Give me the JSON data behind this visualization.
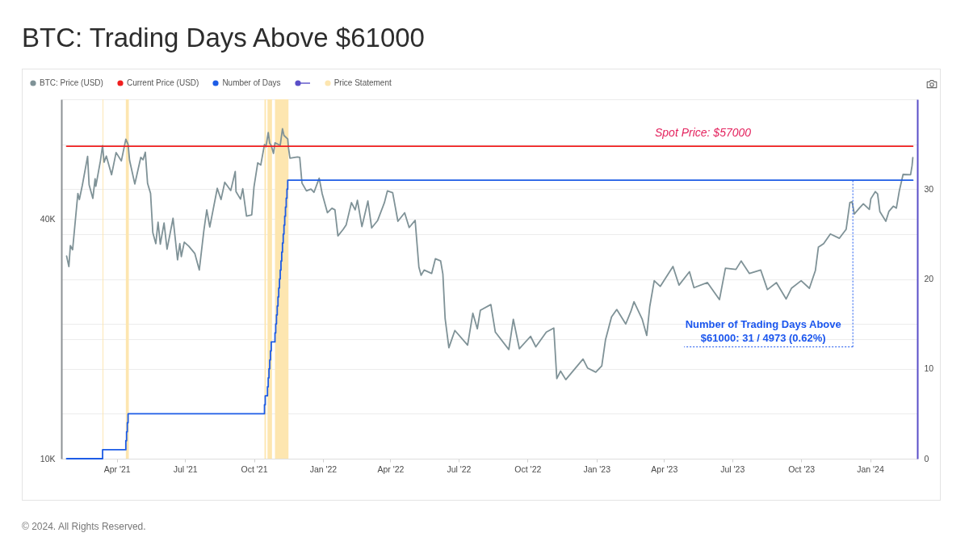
{
  "chart_data": {
    "type": "line",
    "title": "BTC: Trading Days Above $61000",
    "xlim": [
      "2021-01-17",
      "2024-03-04"
    ],
    "xticks": [
      {
        "value": "2021-04-01",
        "label": "Apr '21"
      },
      {
        "value": "2021-07-01",
        "label": "Jul '21"
      },
      {
        "value": "2021-10-01",
        "label": "Oct '21"
      },
      {
        "value": "2022-01-01",
        "label": "Jan '22"
      },
      {
        "value": "2022-04-01",
        "label": "Apr '22"
      },
      {
        "value": "2022-07-01",
        "label": "Jul '22"
      },
      {
        "value": "2022-10-01",
        "label": "Oct '22"
      },
      {
        "value": "2023-01-01",
        "label": "Jan '23"
      },
      {
        "value": "2023-04-01",
        "label": "Apr '23"
      },
      {
        "value": "2023-07-01",
        "label": "Jul '23"
      },
      {
        "value": "2023-10-01",
        "label": "Oct '23"
      },
      {
        "value": "2024-01-01",
        "label": "Jan '24"
      }
    ],
    "ylim": [
      10000,
      80000
    ],
    "log": true,
    "yticks": [
      {
        "value": 10000,
        "label": "10K"
      },
      {
        "value": 20000,
        "label": null
      },
      {
        "value": 40000,
        "label": "40K"
      },
      {
        "value": 80000,
        "label": null
      }
    ],
    "y2lim": [
      0,
      40
    ],
    "y2ticks": [
      0,
      {
        "value": 5,
        "label": null
      },
      10,
      {
        "value": 15,
        "label": null
      },
      20,
      {
        "value": 25,
        "label": null
      },
      30,
      {
        "value": 35,
        "label": null
      }
    ],
    "grid": "y",
    "legend": "top left",
    "bands": [
      {
        "axis": "x",
        "from": "2021-03-13",
        "to": "2021-03-14",
        "color": "#fde6b0",
        "label": "Price Statement"
      },
      {
        "axis": "x",
        "from": "2021-04-13",
        "to": "2021-04-17",
        "color": "#fde6b0"
      },
      {
        "axis": "x",
        "from": "2021-10-15",
        "to": "2021-10-17",
        "color": "#fde6b0"
      },
      {
        "axis": "x",
        "from": "2021-10-19",
        "to": "2021-10-25",
        "color": "#fde6b0"
      },
      {
        "axis": "x",
        "from": "2021-10-29",
        "to": "2021-11-16",
        "color": "#fde6b0"
      }
    ],
    "series": [
      {
        "name": "BTC: Price (USD)",
        "color": "#7f9297",
        "x": [
          "2021-01-24",
          "2021-01-27",
          "2021-01-29",
          "2021-02-01",
          "2021-02-08",
          "2021-02-10",
          "2021-02-14",
          "2021-02-21",
          "2021-02-23",
          "2021-02-28",
          "2021-03-03",
          "2021-03-04",
          "2021-03-10",
          "2021-03-13",
          "2021-03-15",
          "2021-03-18",
          "2021-03-25",
          "2021-03-31",
          "2021-04-07",
          "2021-04-13",
          "2021-04-16",
          "2021-04-18",
          "2021-04-25",
          "2021-05-03",
          "2021-05-06",
          "2021-05-09",
          "2021-05-12",
          "2021-05-16",
          "2021-05-19",
          "2021-05-23",
          "2021-05-26",
          "2021-05-29",
          "2021-06-03",
          "2021-06-07",
          "2021-06-15",
          "2021-06-21",
          "2021-06-24",
          "2021-06-26",
          "2021-06-30",
          "2021-07-06",
          "2021-07-14",
          "2021-07-20",
          "2021-07-26",
          "2021-07-30",
          "2021-08-03",
          "2021-08-13",
          "2021-08-18",
          "2021-08-23",
          "2021-08-31",
          "2021-09-06",
          "2021-09-07",
          "2021-09-13",
          "2021-09-16",
          "2021-09-21",
          "2021-09-28",
          "2021-10-01",
          "2021-10-06",
          "2021-10-10",
          "2021-10-15",
          "2021-10-17",
          "2021-10-20",
          "2021-10-22",
          "2021-10-24",
          "2021-10-27",
          "2021-10-29",
          "2021-11-05",
          "2021-11-08",
          "2021-11-10",
          "2021-11-15",
          "2021-11-16",
          "2021-11-18",
          "2021-11-28",
          "2021-12-01",
          "2021-12-04",
          "2021-12-10",
          "2021-12-16",
          "2021-12-20",
          "2021-12-27",
          "2021-12-31",
          "2022-01-07",
          "2022-01-13",
          "2022-01-17",
          "2022-01-21",
          "2022-01-28",
          "2022-02-01",
          "2022-02-08",
          "2022-02-13",
          "2022-02-16",
          "2022-02-22",
          "2022-03-02",
          "2022-03-07",
          "2022-03-15",
          "2022-03-24",
          "2022-03-28",
          "2022-04-04",
          "2022-04-11",
          "2022-04-20",
          "2022-04-26",
          "2022-05-04",
          "2022-05-09",
          "2022-05-12",
          "2022-05-16",
          "2022-05-26",
          "2022-05-31",
          "2022-06-07",
          "2022-06-10",
          "2022-06-13",
          "2022-06-18",
          "2022-06-26",
          "2022-07-13",
          "2022-07-20",
          "2022-07-26",
          "2022-07-30",
          "2022-08-13",
          "2022-08-19",
          "2022-09-06",
          "2022-09-12",
          "2022-09-20",
          "2022-10-05",
          "2022-10-12",
          "2022-10-26",
          "2022-11-05",
          "2022-11-09",
          "2022-11-14",
          "2022-11-21",
          "2022-12-14",
          "2022-12-20",
          "2022-12-31",
          "2023-01-08",
          "2023-01-13",
          "2023-01-21",
          "2023-01-28",
          "2023-02-09",
          "2023-02-16",
          "2023-02-20",
          "2023-03-03",
          "2023-03-09",
          "2023-03-13",
          "2023-03-19",
          "2023-03-27",
          "2023-04-13",
          "2023-04-21",
          "2023-05-05",
          "2023-05-11",
          "2023-05-29",
          "2023-06-14",
          "2023-06-22",
          "2023-07-06",
          "2023-07-13",
          "2023-07-24",
          "2023-08-08",
          "2023-08-17",
          "2023-08-29",
          "2023-09-11",
          "2023-09-18",
          "2023-10-01",
          "2023-10-12",
          "2023-10-20",
          "2023-10-24",
          "2023-10-31",
          "2023-11-09",
          "2023-11-21",
          "2023-11-30",
          "2023-12-05",
          "2023-12-08",
          "2023-12-11",
          "2023-12-18",
          "2023-12-23",
          "2023-12-31",
          "2024-01-02",
          "2024-01-08",
          "2024-01-11",
          "2024-01-14",
          "2024-01-22",
          "2024-01-26",
          "2024-02-01",
          "2024-02-05",
          "2024-02-09",
          "2024-02-14",
          "2024-02-24",
          "2024-02-26",
          "2024-02-27"
        ],
        "values": [
          32300,
          30400,
          34300,
          33500,
          46400,
          44800,
          48700,
          57500,
          48800,
          45100,
          50500,
          48400,
          55900,
          61200,
          55600,
          57600,
          51700,
          58800,
          56000,
          63500,
          61600,
          56200,
          49000,
          57200,
          56400,
          58900,
          49200,
          46400,
          37000,
          34700,
          39300,
          34600,
          39100,
          33600,
          40200,
          31600,
          34700,
          32200,
          35000,
          34200,
          32800,
          29800,
          37300,
          42200,
          38200,
          47800,
          44800,
          49500,
          47200,
          52700,
          46900,
          44900,
          47700,
          40700,
          41000,
          48200,
          55400,
          54700,
          61600,
          60800,
          66000,
          62000,
          61200,
          58500,
          62200,
          61300,
          67500,
          64900,
          63600,
          60400,
          56900,
          57300,
          57200,
          49300,
          47100,
          47600,
          46700,
          50700,
          46300,
          41500,
          42600,
          42200,
          36300,
          37700,
          38700,
          44000,
          42200,
          44600,
          38300,
          44400,
          38000,
          39700,
          44000,
          47100,
          46600,
          39500,
          41500,
          38100,
          39700,
          30300,
          28900,
          29800,
          29200,
          31800,
          31400,
          29100,
          22500,
          19000,
          21000,
          19300,
          23200,
          21200,
          23600,
          24400,
          20800,
          18800,
          22400,
          18900,
          20300,
          19100,
          20800,
          21300,
          15900,
          16600,
          15800,
          17800,
          16900,
          16500,
          17100,
          19900,
          22700,
          23700,
          21800,
          23500,
          24800,
          22400,
          20400,
          24100,
          28000,
          27100,
          30400,
          27300,
          29500,
          26900,
          27700,
          25100,
          30100,
          29900,
          31400,
          29200,
          29800,
          26600,
          27700,
          25200,
          26800,
          28000,
          26800,
          29700,
          34000,
          34700,
          36700,
          35800,
          37700,
          44000,
          44200,
          41200,
          42700,
          43700,
          42300,
          45000,
          46900,
          46300,
          41800,
          39500,
          41800,
          43100,
          42600,
          47100,
          51800,
          51700,
          54500,
          57100
        ]
      },
      {
        "name": "Current Price (USD)",
        "color": "#f01e1e",
        "x": [
          "2021-01-24",
          "2024-02-27"
        ],
        "values": [
          61000,
          61000
        ]
      },
      {
        "name": "Number of Days",
        "color": "#1d5ce6",
        "type": "step",
        "axis": "y2",
        "x": [
          "2021-01-24",
          "2021-03-13",
          "2021-04-13",
          "2021-04-14",
          "2021-04-15",
          "2021-04-16",
          "2021-10-15",
          "2021-10-16",
          "2021-10-19",
          "2021-10-20",
          "2021-10-21",
          "2021-10-22",
          "2021-10-23",
          "2021-10-24",
          "2021-10-29",
          "2021-10-30",
          "2021-10-31",
          "2021-11-01",
          "2021-11-02",
          "2021-11-03",
          "2021-11-04",
          "2021-11-05",
          "2021-11-06",
          "2021-11-07",
          "2021-11-08",
          "2021-11-09",
          "2021-11-10",
          "2021-11-11",
          "2021-11-12",
          "2021-11-13",
          "2021-11-14",
          "2021-11-15",
          "2024-02-27"
        ],
        "values": [
          0,
          1,
          2,
          3,
          4,
          5,
          6,
          7,
          8,
          9,
          10,
          11,
          12,
          13,
          14,
          15,
          16,
          17,
          18,
          19,
          20,
          21,
          22,
          23,
          24,
          25,
          26,
          27,
          28,
          29,
          30,
          31,
          31
        ]
      }
    ],
    "annotations": [
      {
        "text": "Spot Price: $57000",
        "x": "2023-05-23",
        "y": 61000
      },
      {
        "text": "Number of Trading Days Above $61000: 31 / 4973 (0.62%)",
        "x": "2023-12-09",
        "y": 50000
      },
      "© 2024. All Rights Reserved."
    ]
  }
}
